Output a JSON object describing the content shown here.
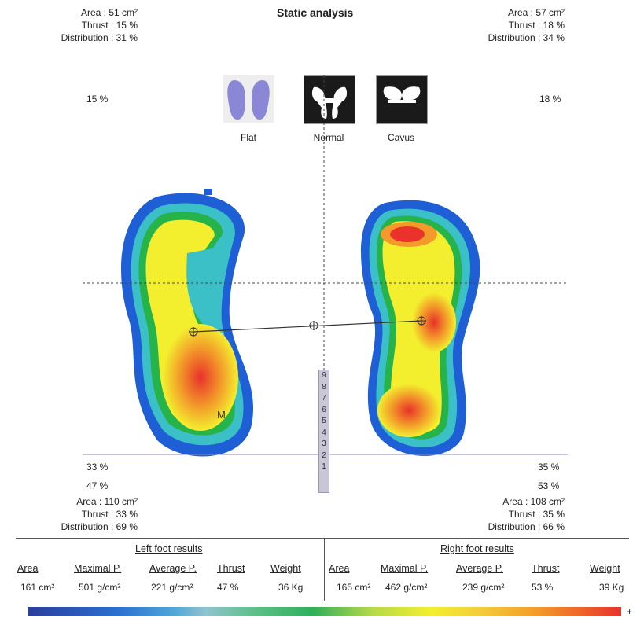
{
  "title": "Static analysis",
  "left_top": {
    "area": "Area :   51 cm²",
    "thrust": "Thrust : 15 %",
    "distribution": "Distribution : 31 %",
    "pct": "15 %"
  },
  "right_top": {
    "area": "Area :   57 cm²",
    "thrust": "Thrust : 18 %",
    "distribution": "Distribution : 34 %",
    "pct": "18 %"
  },
  "foot_types": [
    {
      "label": "Flat"
    },
    {
      "label": "Normal"
    },
    {
      "label": "Cavus"
    }
  ],
  "left_bottom": {
    "p1": "33 %",
    "p2": "47 %",
    "area": "Area :   110 cm²",
    "thrust": "Thrust : 33 %",
    "distribution": "Distribution : 69 %"
  },
  "right_bottom": {
    "p1": "35 %",
    "p2": "53 %",
    "area": "Area :   108 cm²",
    "thrust": "Thrust : 35 %",
    "distribution": "Distribution : 66 %"
  },
  "scale_numbers": [
    "9",
    "8",
    "7",
    "6",
    "5",
    "4",
    "3",
    "2",
    "1"
  ],
  "marker_m": "M",
  "results": {
    "left_title": "Left foot results",
    "right_title": "Right foot results",
    "headers": [
      "Area",
      "Maximal P.",
      "Average P.",
      "Thrust",
      "Weight"
    ],
    "left": [
      "161 cm²",
      "501 g/cm²",
      "221 g/cm²",
      "47 %",
      "36 Kg"
    ],
    "right": [
      "165 cm²",
      "462 g/cm²",
      "239 g/cm²",
      "53 %",
      "39 Kg"
    ]
  },
  "legend_plus": "+",
  "colors": {
    "blue": "#1f5fd6",
    "cyan": "#3cc0c8",
    "green": "#26b34a",
    "yellow": "#f3ef2e",
    "orange": "#f39a2a",
    "red": "#e8322a"
  }
}
